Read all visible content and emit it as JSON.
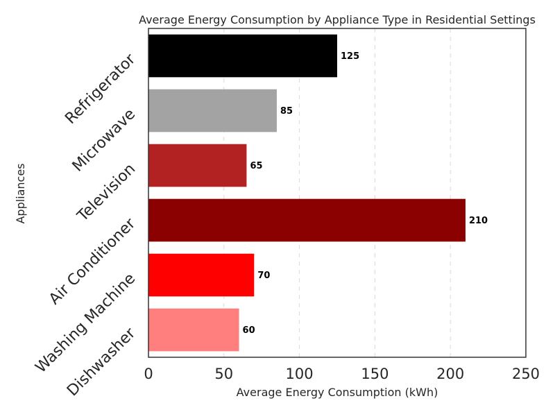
{
  "chart_data": {
    "type": "bar",
    "orientation": "horizontal",
    "title": "Average Energy Consumption by Appliance Type in Residential Settings",
    "xlabel": "Average Energy Consumption (kWh)",
    "ylabel": "Appliances",
    "categories": [
      "Refrigerator",
      "Microwave",
      "Television",
      "Air Conditioner",
      "Washing Machine",
      "Dishwasher"
    ],
    "values": [
      125,
      85,
      65,
      210,
      70,
      60
    ],
    "colors": [
      "#000000",
      "#a3a3a3",
      "#b22222",
      "#8b0000",
      "#ff0000",
      "#ff7f7f"
    ],
    "xlim": [
      0,
      250
    ],
    "xticks": [
      0,
      50,
      100,
      150,
      200,
      250
    ],
    "grid": "vertical-dashed",
    "legend": "none"
  }
}
